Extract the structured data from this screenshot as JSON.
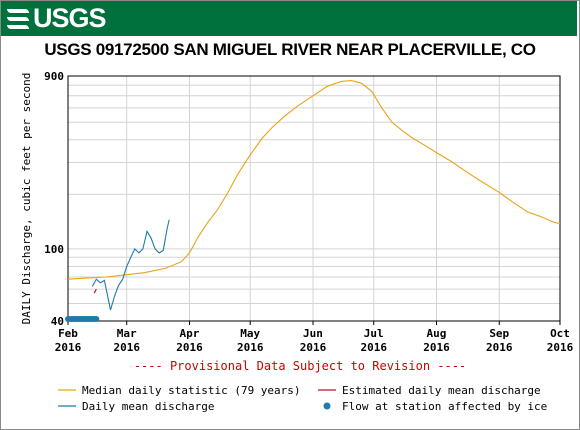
{
  "header": {
    "logo_text": "USGS",
    "title": "USGS 09172500 SAN MIGUEL RIVER NEAR PLACERVILLE, CO"
  },
  "colors": {
    "banner": "#00703c",
    "median": "#e8a317",
    "daily": "#1f7bab",
    "estimated": "#c0102a",
    "ice": "#1f7bab",
    "provisional": "#cc0000"
  },
  "chart_data": {
    "type": "line",
    "ylabel": "DAILY Discharge, cubic feet per second",
    "y_scale": "log",
    "ylim": [
      40,
      900
    ],
    "y_ticks": [
      {
        "value": 900,
        "label": "900"
      },
      {
        "value": 100,
        "label": "100"
      },
      {
        "value": 40,
        "label": "40"
      }
    ],
    "xlim": [
      "2016-02-01",
      "2016-10-01"
    ],
    "x_ticks": [
      {
        "date": "2016-02-01",
        "month": "Feb",
        "year": "2016"
      },
      {
        "date": "2016-03-01",
        "month": "Mar",
        "year": "2016"
      },
      {
        "date": "2016-04-01",
        "month": "Apr",
        "year": "2016"
      },
      {
        "date": "2016-05-01",
        "month": "May",
        "year": "2016"
      },
      {
        "date": "2016-06-01",
        "month": "Jun",
        "year": "2016"
      },
      {
        "date": "2016-07-01",
        "month": "Jul",
        "year": "2016"
      },
      {
        "date": "2016-08-01",
        "month": "Aug",
        "year": "2016"
      },
      {
        "date": "2016-09-01",
        "month": "Sep",
        "year": "2016"
      },
      {
        "date": "2016-10-01",
        "month": "Oct",
        "year": "2016"
      }
    ],
    "provisional_note": "---- Provisional Data Subject to Revision ----",
    "legend": {
      "median": "Median daily statistic (79 years)",
      "estimated": "Estimated daily mean discharge",
      "daily": "Daily mean discharge",
      "ice": "Flow at station affected by ice"
    },
    "series": [
      {
        "key": "median",
        "points": [
          [
            "2016-02-01",
            68
          ],
          [
            "2016-02-10",
            69
          ],
          [
            "2016-02-20",
            70
          ],
          [
            "2016-03-01",
            72
          ],
          [
            "2016-03-10",
            74
          ],
          [
            "2016-03-20",
            78
          ],
          [
            "2016-03-28",
            85
          ],
          [
            "2016-04-01",
            95
          ],
          [
            "2016-04-05",
            115
          ],
          [
            "2016-04-10",
            140
          ],
          [
            "2016-04-15",
            165
          ],
          [
            "2016-04-20",
            205
          ],
          [
            "2016-04-25",
            260
          ],
          [
            "2016-05-01",
            330
          ],
          [
            "2016-05-07",
            410
          ],
          [
            "2016-05-12",
            470
          ],
          [
            "2016-05-18",
            540
          ],
          [
            "2016-05-24",
            610
          ],
          [
            "2016-06-01",
            700
          ],
          [
            "2016-06-08",
            790
          ],
          [
            "2016-06-15",
            840
          ],
          [
            "2016-06-20",
            850
          ],
          [
            "2016-06-25",
            820
          ],
          [
            "2016-06-30",
            740
          ],
          [
            "2016-07-05",
            600
          ],
          [
            "2016-07-10",
            500
          ],
          [
            "2016-07-15",
            450
          ],
          [
            "2016-07-20",
            410
          ],
          [
            "2016-07-25",
            380
          ],
          [
            "2016-08-01",
            340
          ],
          [
            "2016-08-08",
            305
          ],
          [
            "2016-08-15",
            270
          ],
          [
            "2016-08-22",
            240
          ],
          [
            "2016-09-01",
            205
          ],
          [
            "2016-09-08",
            180
          ],
          [
            "2016-09-15",
            160
          ],
          [
            "2016-09-22",
            150
          ],
          [
            "2016-09-28",
            140
          ],
          [
            "2016-10-01",
            138
          ]
        ]
      },
      {
        "key": "daily",
        "points": [
          [
            "2016-02-13",
            62
          ],
          [
            "2016-02-15",
            68
          ],
          [
            "2016-02-17",
            65
          ],
          [
            "2016-02-19",
            67
          ],
          [
            "2016-02-21",
            52
          ],
          [
            "2016-02-22",
            46
          ],
          [
            "2016-02-24",
            55
          ],
          [
            "2016-02-26",
            63
          ],
          [
            "2016-02-28",
            68
          ],
          [
            "2016-03-01",
            80
          ],
          [
            "2016-03-03",
            90
          ],
          [
            "2016-03-05",
            100
          ],
          [
            "2016-03-07",
            95
          ],
          [
            "2016-03-09",
            100
          ],
          [
            "2016-03-11",
            125
          ],
          [
            "2016-03-13",
            115
          ],
          [
            "2016-03-15",
            100
          ],
          [
            "2016-03-17",
            95
          ],
          [
            "2016-03-19",
            98
          ],
          [
            "2016-03-21",
            130
          ],
          [
            "2016-03-22",
            145
          ]
        ]
      },
      {
        "key": "estimated",
        "points": [
          [
            "2016-02-14",
            57
          ],
          [
            "2016-02-15",
            60
          ]
        ]
      }
    ],
    "ice_points": {
      "start": "2016-02-01",
      "end": "2016-02-15",
      "value": 40
    }
  }
}
